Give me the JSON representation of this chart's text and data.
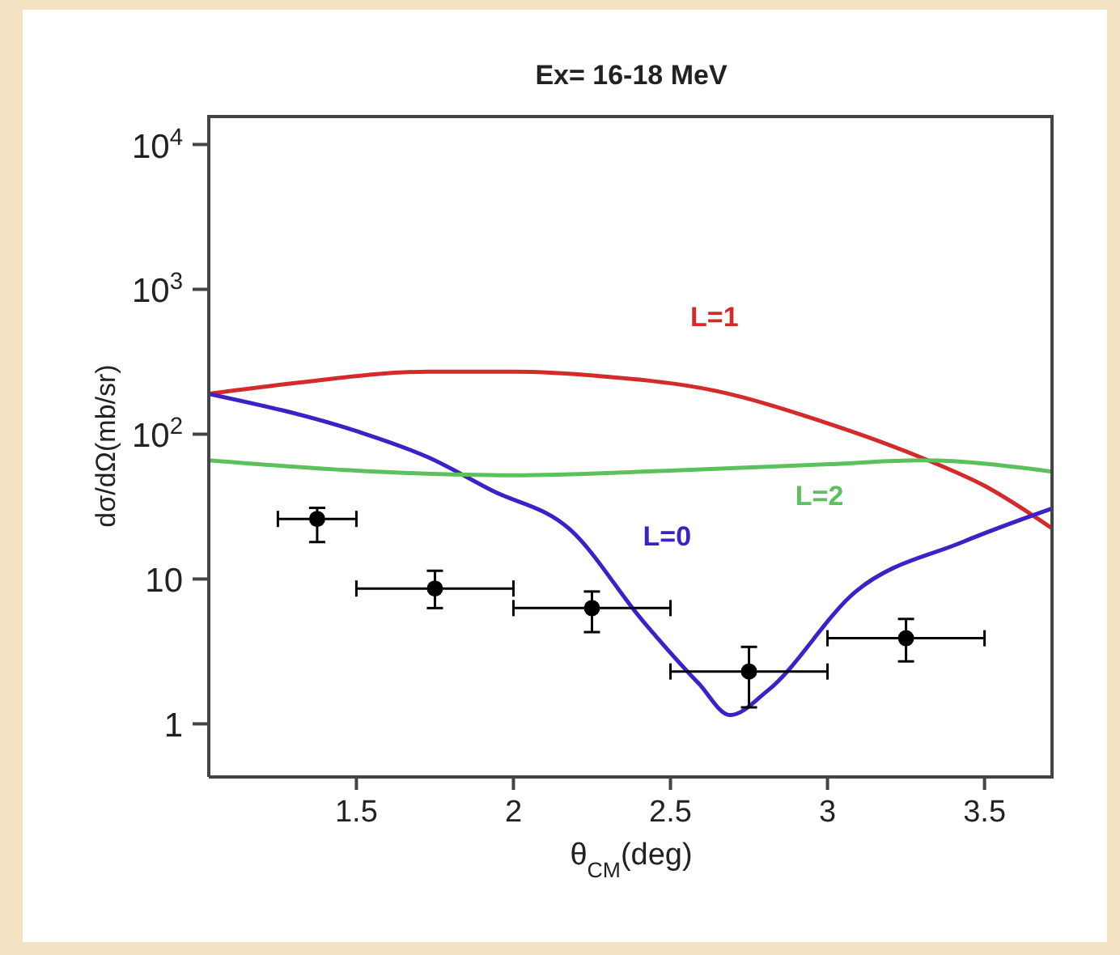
{
  "chart_data": {
    "type": "line",
    "title": "Ex= 16-18 MeV",
    "xlabel": "θ$_{CM}$(deg)",
    "ylabel": "dσ/dΩ(mb/sr)",
    "log": "y",
    "xlim": [
      1.03,
      3.72
    ],
    "xticks": [
      1.5,
      2,
      2.5,
      3,
      3.5
    ],
    "ylim": [
      0.43,
      16000
    ],
    "yticks": [
      1,
      10,
      {
        "value": 100,
        "label": "10$^{2}$"
      },
      {
        "value": 1000,
        "label": "10$^{3}$"
      },
      {
        "value": 10000,
        "label": "10$^{4}$"
      }
    ],
    "grid": false,
    "legend": false,
    "series": [
      {
        "name": "L=1",
        "marker": "none",
        "color": "#d42a2a",
        "x": [
          1.03,
          1.3,
          1.73,
          2.0,
          2.29,
          2.64,
          2.98,
          3.32,
          3.5,
          3.72
        ],
        "values": [
          190,
          225,
          270,
          270,
          250,
          200,
          123,
          66,
          44,
          22
        ]
      },
      {
        "name": "L=0",
        "marker": "none",
        "color": "#3a22c8",
        "x": [
          1.03,
          1.5,
          1.73,
          1.93,
          2.18,
          2.41,
          2.59,
          2.69,
          2.81,
          3.09,
          3.43,
          3.72
        ],
        "values": [
          190,
          105,
          69,
          41,
          22,
          5.2,
          1.9,
          1.15,
          1.7,
          8.2,
          18,
          31
        ]
      },
      {
        "name": "L=2",
        "marker": "none",
        "color": "#5cc05c",
        "x": [
          1.03,
          1.5,
          2.0,
          2.5,
          3.0,
          3.3,
          3.72
        ],
        "values": [
          66,
          56,
          52,
          56,
          62,
          66,
          55
        ]
      },
      {
        "type": "scatter",
        "marker": "circle",
        "color": "#000000",
        "x": [
          1.375,
          1.75,
          2.25,
          2.75,
          3.25
        ],
        "values": [
          26,
          8.6,
          6.3,
          2.3,
          3.9
        ],
        "errors": [
          [
            18,
            31
          ],
          [
            6.3,
            11.4
          ],
          [
            4.3,
            8.2
          ],
          [
            1.3,
            3.4
          ],
          [
            2.7,
            5.3
          ]
        ],
        "xerrors": [
          [
            1.25,
            1.5
          ],
          [
            1.5,
            2.0
          ],
          [
            2.0,
            2.5
          ],
          [
            2.5,
            3.0
          ],
          [
            3.0,
            3.5
          ]
        ]
      }
    ]
  }
}
